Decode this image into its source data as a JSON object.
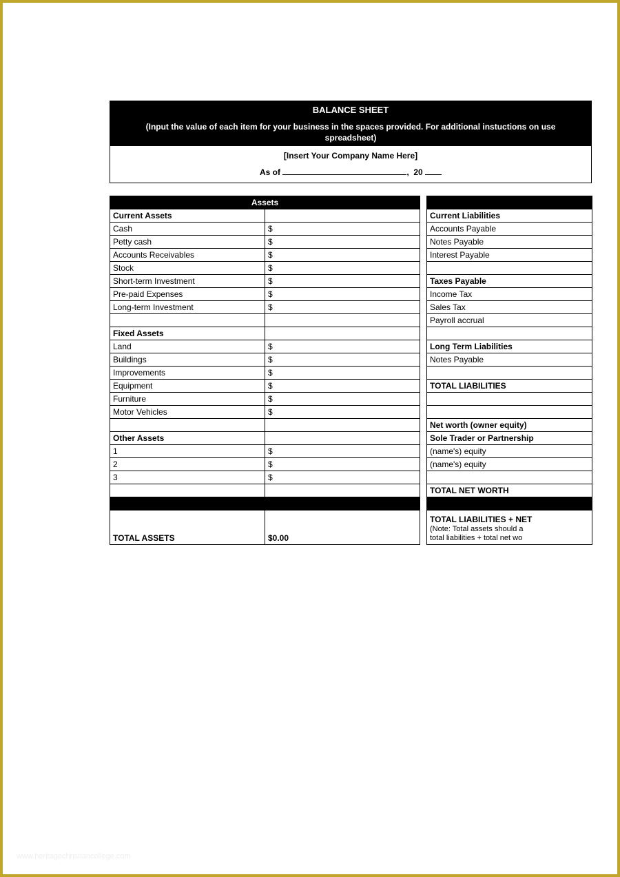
{
  "colors": {
    "frame_border": "#c0a62a",
    "header_bg": "#000000",
    "header_fg": "#ffffff",
    "cell_border": "#000000",
    "page_bg": "#ffffff"
  },
  "header": {
    "title": "BALANCE SHEET",
    "instructions_line1": "(Input the value of each item for your business in the spaces provided. For additional instuctions on use",
    "instructions_line2": "spreadsheet)",
    "company_placeholder": "[Insert Your Company Name Here]",
    "asof_prefix": "As of",
    "asof_comma": ",",
    "asof_year_prefix": "20"
  },
  "section_headers": {
    "assets": "Assets",
    "current_assets": "Current Assets",
    "fixed_assets": "Fixed Assets",
    "other_assets": "Other Assets",
    "current_liabilities": "Current Liabilities",
    "taxes_payable": "Taxes Payable",
    "long_term_liabilities": "Long Term Liabilities",
    "total_liabilities": "TOTAL LIABILITIES",
    "net_worth": "Net worth (owner equity)",
    "sole_trader": "Sole Trader or Partnership",
    "total_net_worth": "TOTAL NET WORTH",
    "total_assets": "TOTAL ASSETS",
    "total_assets_value": "$0.00",
    "total_liab_net": "TOTAL LIABILITIES + NET",
    "note_line1": "(Note: Total assets should a",
    "note_line2": "total liabilities + total net wo"
  },
  "currency_symbol": "$",
  "left_rows": {
    "current": [
      "Cash",
      "Petty cash",
      "Accounts Receivables",
      "Stock",
      "Short-term Investment",
      "Pre-paid Expenses",
      "Long-term Investment"
    ],
    "fixed": [
      "Land",
      "Buildings",
      "Improvements",
      "Equipment",
      "Furniture",
      "Motor Vehicles"
    ],
    "other": [
      "1",
      "2",
      "3"
    ]
  },
  "right_rows": {
    "current_liab": [
      "Accounts Payable",
      "Notes Payable",
      "Interest Payable"
    ],
    "taxes": [
      "Income Tax",
      "Sales Tax",
      "Payroll accrual"
    ],
    "long_term": [
      "Notes Payable"
    ],
    "equity": [
      "(name's) equity",
      "(name's) equity"
    ]
  },
  "watermark": "www.heritagechristiancollege.com"
}
